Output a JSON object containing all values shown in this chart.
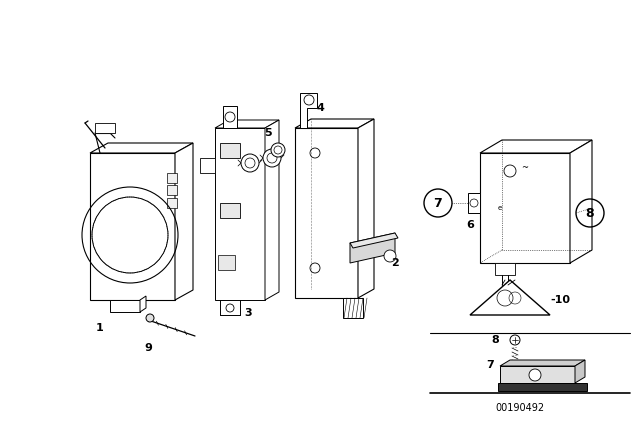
{
  "background_color": "#ffffff",
  "line_color": "#000000",
  "part_number": "00190492",
  "fig_width": 6.4,
  "fig_height": 4.48,
  "dpi": 100
}
